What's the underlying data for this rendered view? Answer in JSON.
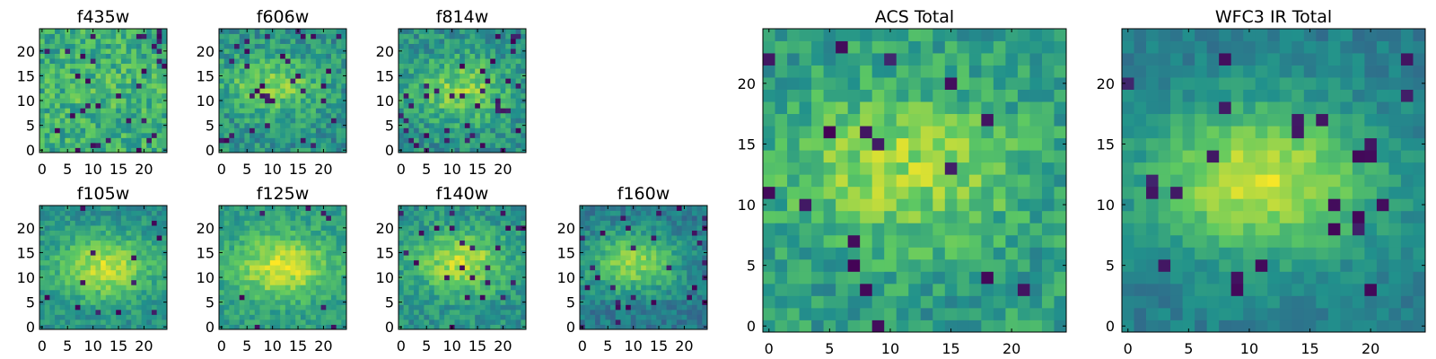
{
  "colormap": {
    "name": "viridis",
    "stops": [
      "#440154",
      "#3b528b",
      "#21918c",
      "#5ec962",
      "#fde725"
    ]
  },
  "chart_data": [
    {
      "type": "heatmap",
      "title": "f435w",
      "grid_size": 25,
      "xticks": [
        0,
        5,
        10,
        15,
        20
      ],
      "yticks": [
        0,
        5,
        10,
        15,
        20
      ],
      "xlim": [
        0,
        24
      ],
      "ylim": [
        0,
        24
      ],
      "source_peak": {
        "x": 12,
        "y": 12,
        "amplitude": 0.05
      },
      "noise": 0.34,
      "base": 0.62,
      "dark_fraction": 0.05
    },
    {
      "type": "heatmap",
      "title": "f606w",
      "grid_size": 25,
      "xticks": [
        0,
        5,
        10,
        15,
        20
      ],
      "yticks": [
        0,
        5,
        10,
        15,
        20
      ],
      "xlim": [
        0,
        24
      ],
      "ylim": [
        0,
        24
      ],
      "source_peak": {
        "x": 10,
        "y": 13,
        "amplitude": 0.28
      },
      "noise": 0.3,
      "base": 0.5,
      "dark_fraction": 0.05
    },
    {
      "type": "heatmap",
      "title": "f814w",
      "grid_size": 25,
      "xticks": [
        0,
        5,
        10,
        15,
        20
      ],
      "yticks": [
        0,
        5,
        10,
        15,
        20
      ],
      "xlim": [
        0,
        24
      ],
      "ylim": [
        0,
        24
      ],
      "source_peak": {
        "x": 12,
        "y": 12,
        "amplitude": 0.3
      },
      "noise": 0.3,
      "base": 0.5,
      "dark_fraction": 0.05
    },
    {
      "type": "heatmap",
      "title": "f105w",
      "grid_size": 25,
      "xticks": [
        0,
        5,
        10,
        15,
        20
      ],
      "yticks": [
        0,
        5,
        10,
        15,
        20
      ],
      "xlim": [
        0,
        24
      ],
      "ylim": [
        0,
        24
      ],
      "source_peak": {
        "x": 12,
        "y": 12,
        "amplitude": 0.4
      },
      "noise": 0.22,
      "base": 0.5,
      "dark_fraction": 0.02
    },
    {
      "type": "heatmap",
      "title": "f125w",
      "grid_size": 25,
      "xticks": [
        0,
        5,
        10,
        15,
        20
      ],
      "yticks": [
        0,
        5,
        10,
        15,
        20
      ],
      "xlim": [
        0,
        24
      ],
      "ylim": [
        0,
        24
      ],
      "source_peak": {
        "x": 12,
        "y": 12,
        "amplitude": 0.38
      },
      "noise": 0.22,
      "base": 0.55,
      "dark_fraction": 0.02
    },
    {
      "type": "heatmap",
      "title": "f140w",
      "grid_size": 25,
      "xticks": [
        0,
        5,
        10,
        15,
        20
      ],
      "yticks": [
        0,
        5,
        10,
        15,
        20
      ],
      "xlim": [
        0,
        24
      ],
      "ylim": [
        0,
        24
      ],
      "source_peak": {
        "x": 12,
        "y": 13,
        "amplitude": 0.38
      },
      "noise": 0.24,
      "base": 0.5,
      "dark_fraction": 0.04
    },
    {
      "type": "heatmap",
      "title": "f160w",
      "grid_size": 25,
      "xticks": [
        0,
        5,
        10,
        15,
        20
      ],
      "yticks": [
        0,
        5,
        10,
        15,
        20
      ],
      "xlim": [
        0,
        24
      ],
      "ylim": [
        0,
        24
      ],
      "source_peak": {
        "x": 10,
        "y": 13,
        "amplitude": 0.42
      },
      "noise": 0.22,
      "base": 0.4,
      "dark_fraction": 0.04
    },
    {
      "type": "heatmap",
      "title": "ACS Total",
      "grid_size": 25,
      "xticks": [
        0,
        5,
        10,
        15,
        20
      ],
      "yticks": [
        0,
        5,
        10,
        15,
        20
      ],
      "xlim": [
        0,
        24
      ],
      "ylim": [
        0,
        24
      ],
      "source_peak": {
        "x": 11,
        "y": 13,
        "amplitude": 0.3
      },
      "noise": 0.28,
      "base": 0.55,
      "dark_fraction": 0.04
    },
    {
      "type": "heatmap",
      "title": "WFC3 IR Total",
      "grid_size": 25,
      "xticks": [
        0,
        5,
        10,
        15,
        20
      ],
      "yticks": [
        0,
        5,
        10,
        15,
        20
      ],
      "xlim": [
        0,
        24
      ],
      "ylim": [
        0,
        24
      ],
      "source_peak": {
        "x": 11,
        "y": 12,
        "amplitude": 0.5
      },
      "noise": 0.16,
      "base": 0.42,
      "dark_fraction": 0.03
    }
  ]
}
